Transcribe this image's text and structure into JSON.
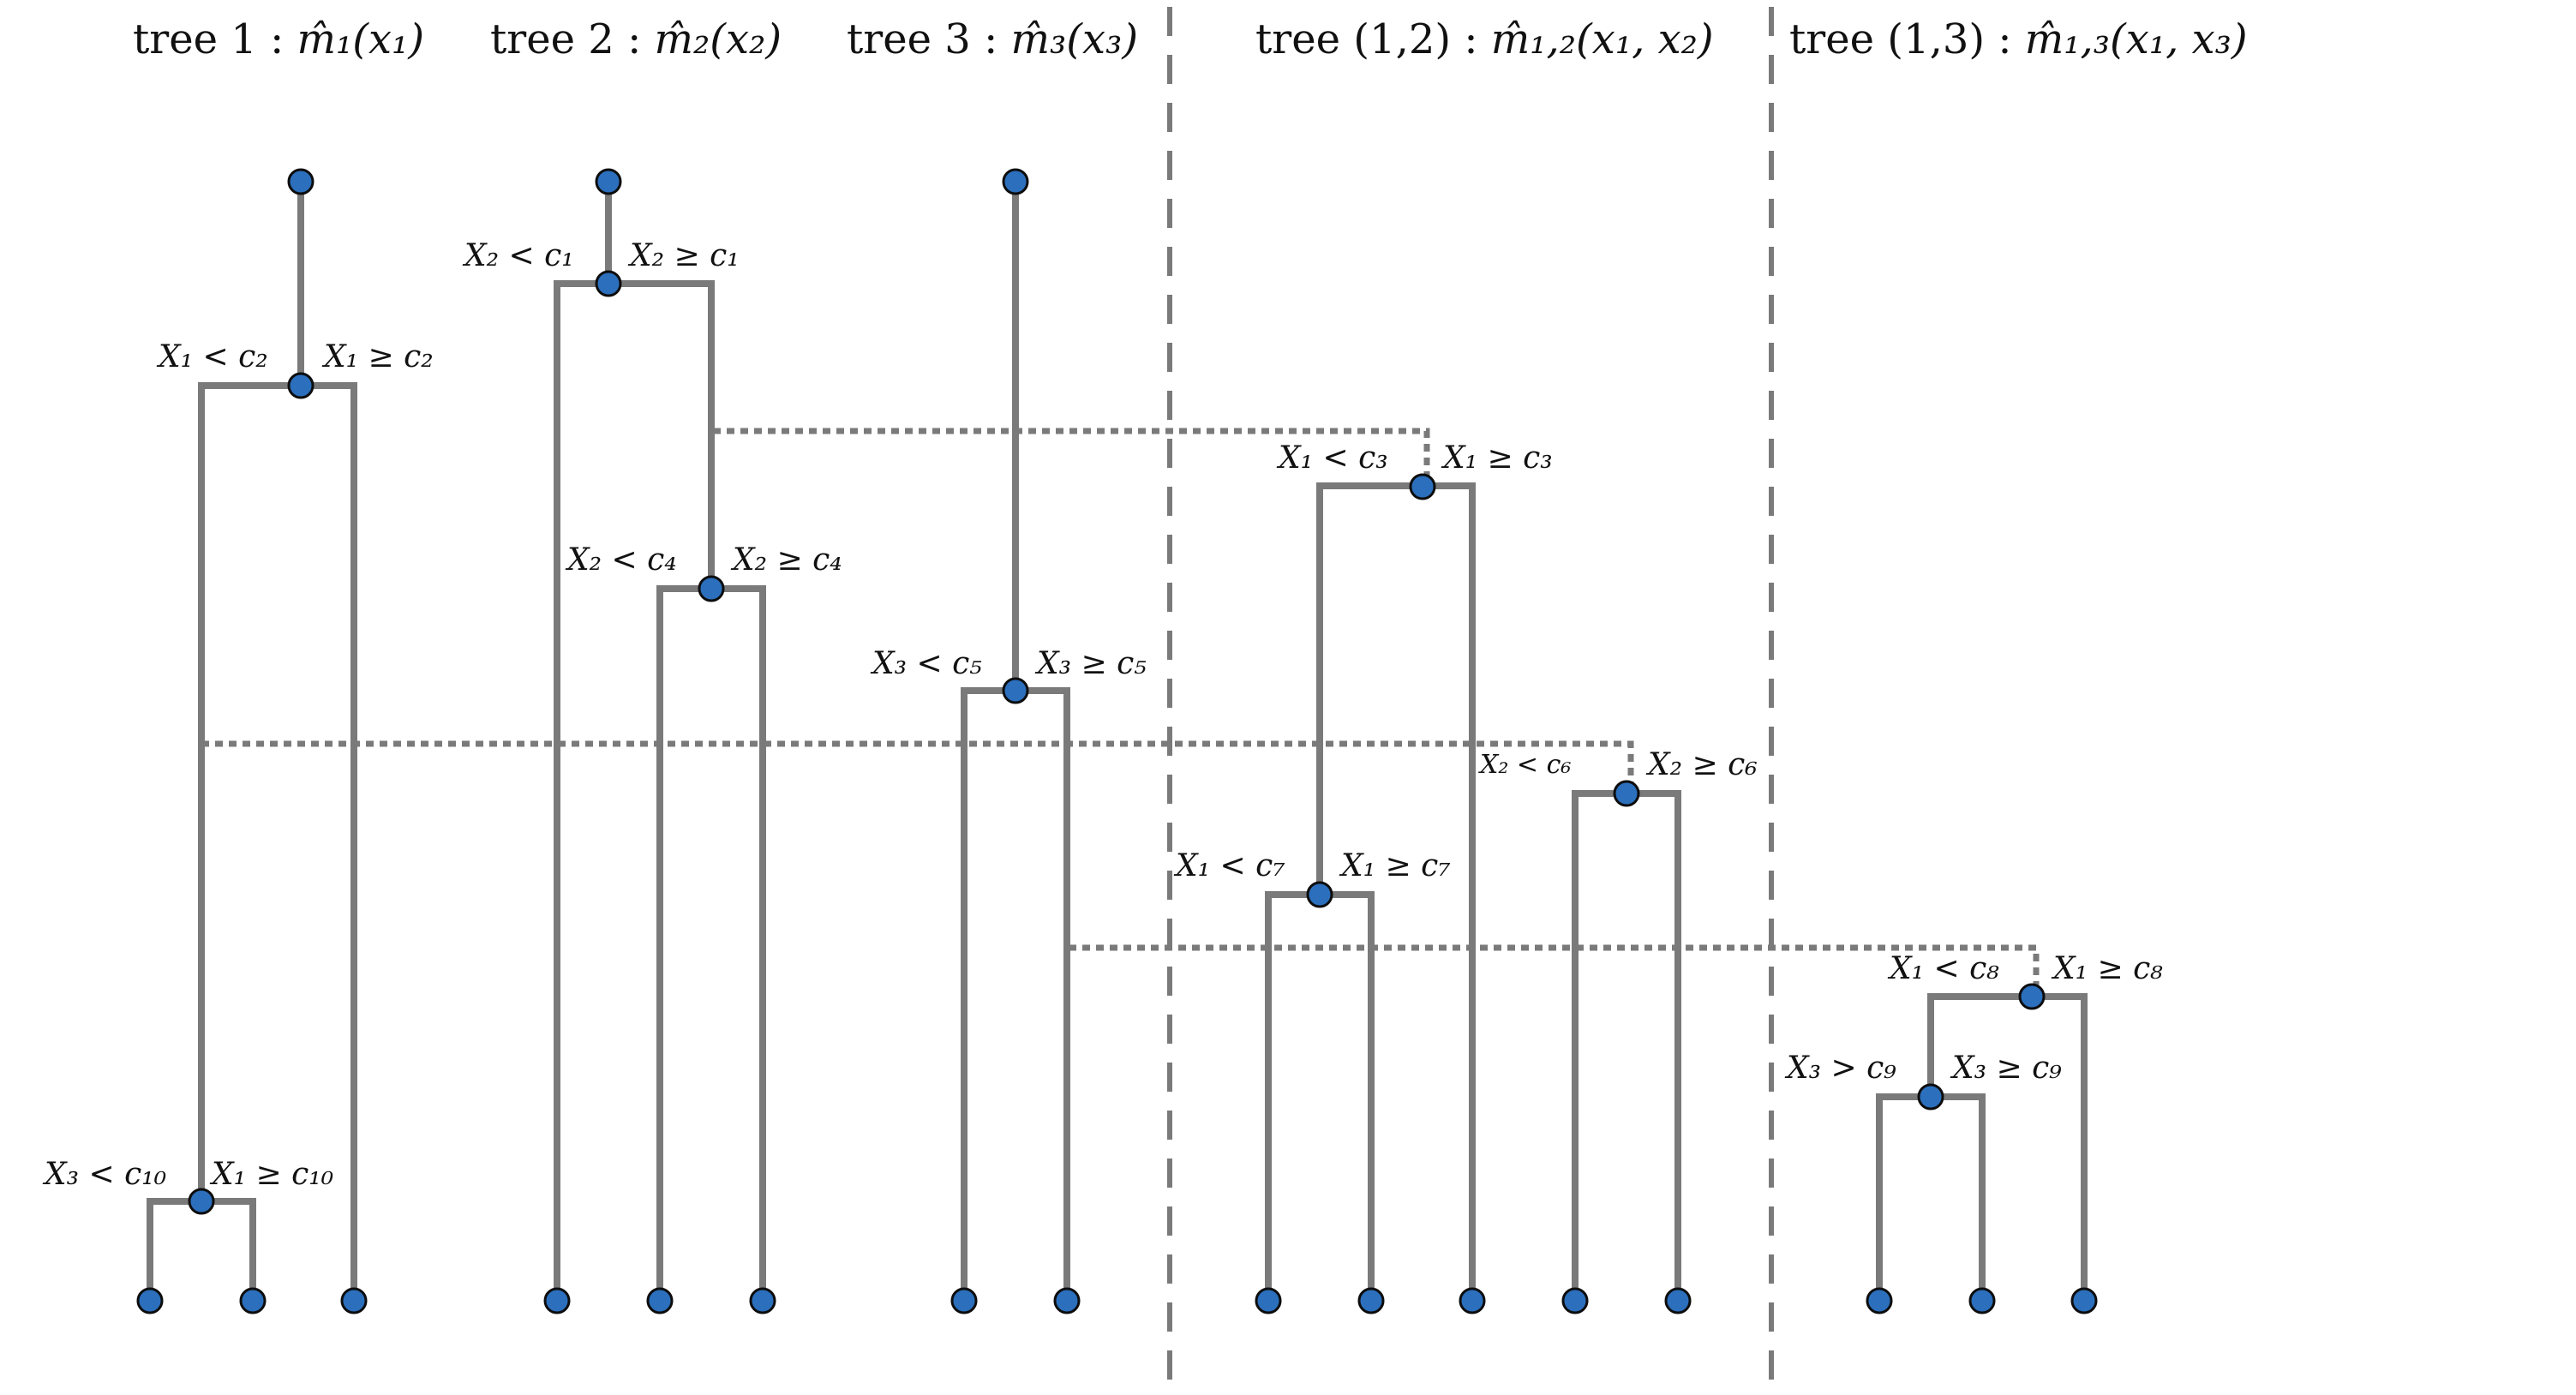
{
  "titles": [
    {
      "id": "t1",
      "prefix": "tree 1 : ",
      "math": "m̂₁(x₁)"
    },
    {
      "id": "t2",
      "prefix": "tree 2 : ",
      "math": "m̂₂(x₂)"
    },
    {
      "id": "t3",
      "prefix": "tree 3 : ",
      "math": "m̂₃(x₃)"
    },
    {
      "id": "t12",
      "prefix": "tree (1,2) : ",
      "math": "m̂₁,₂(x₁, x₂)"
    },
    {
      "id": "t13",
      "prefix": "tree (1,3) : ",
      "math": "m̂₁,₃(x₁, x₃)"
    }
  ],
  "split_labels": [
    {
      "id": "s1l",
      "text": "X₁ < c₂"
    },
    {
      "id": "s1r",
      "text": "X₁ ≥ c₂"
    },
    {
      "id": "s10l",
      "text": "X₃ < c₁₀"
    },
    {
      "id": "s10r",
      "text": "X₁ ≥ c₁₀"
    },
    {
      "id": "s2l",
      "text": "X₂ < c₁"
    },
    {
      "id": "s2r",
      "text": "X₂ ≥ c₁"
    },
    {
      "id": "s4l",
      "text": "X₂ < c₄"
    },
    {
      "id": "s4r",
      "text": "X₂ ≥ c₄"
    },
    {
      "id": "s5l",
      "text": "X₃ < c₅"
    },
    {
      "id": "s5r",
      "text": "X₃ ≥ c₅"
    },
    {
      "id": "s3l",
      "text": "X₁ < c₃"
    },
    {
      "id": "s3r",
      "text": "X₁ ≥ c₃"
    },
    {
      "id": "s6l",
      "text": "X₂ < c₆"
    },
    {
      "id": "s6r",
      "text": "X₂ ≥ c₆"
    },
    {
      "id": "s7l",
      "text": "X₁ < c₇"
    },
    {
      "id": "s7r",
      "text": "X₁ ≥ c₇"
    },
    {
      "id": "s8l",
      "text": "X₁ < c₈"
    },
    {
      "id": "s8r",
      "text": "X₁ ≥ c₈"
    },
    {
      "id": "s9l",
      "text": "X₃ > c₉"
    },
    {
      "id": "s9r",
      "text": "X₃ ≥ c₉"
    }
  ],
  "colors": {
    "edge": "#7a7a7a",
    "node_fill": "#2b6fbd",
    "node_stroke": "#0d0d0d"
  }
}
